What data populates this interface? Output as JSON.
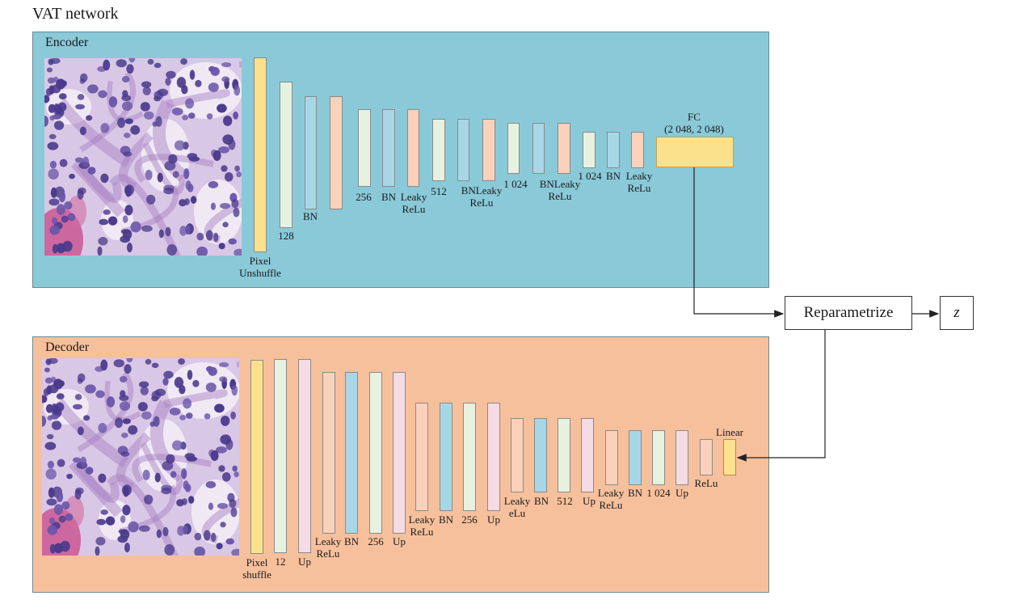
{
  "title": "VAT network",
  "colors": {
    "encoder_bg": "#8ac9d8",
    "decoder_bg": "#f7c09c",
    "pixel_layer": "#fbe18b",
    "conv_layer": "#e6f1df",
    "bn_layer": "#a7d7e7",
    "act_layer": "#fad1bb",
    "up_layer": "#f5dbe3"
  },
  "encoder": {
    "label": "Encoder",
    "fc_label": "FC\n(2 048, 2 048)",
    "layer_labels": [
      "Pixel\nUnshuffle",
      "128",
      "BN",
      "256",
      "BN",
      "Leaky\nReLu",
      "512",
      "BNLeaky\nReLu",
      "1 024",
      "BNLeaky\nReLu",
      "1 024",
      "BN",
      "Leaky\nReLu"
    ]
  },
  "decoder": {
    "label": "Decoder",
    "linear_label": "Linear",
    "layer_labels": [
      "Pixel\nshuffle",
      "12",
      "Up",
      "Leaky\nReLu",
      "BN",
      "256",
      "Up",
      "Leaky\nReLu",
      "BN",
      "256",
      "Up",
      "Leaky\neLu",
      "BN",
      "512",
      "Up",
      "Leaky\nReLu",
      "BN",
      "1 024",
      "Up",
      "ReLu"
    ]
  },
  "reparametrize": {
    "label": "Reparametrize"
  },
  "latent": {
    "label": "z"
  }
}
